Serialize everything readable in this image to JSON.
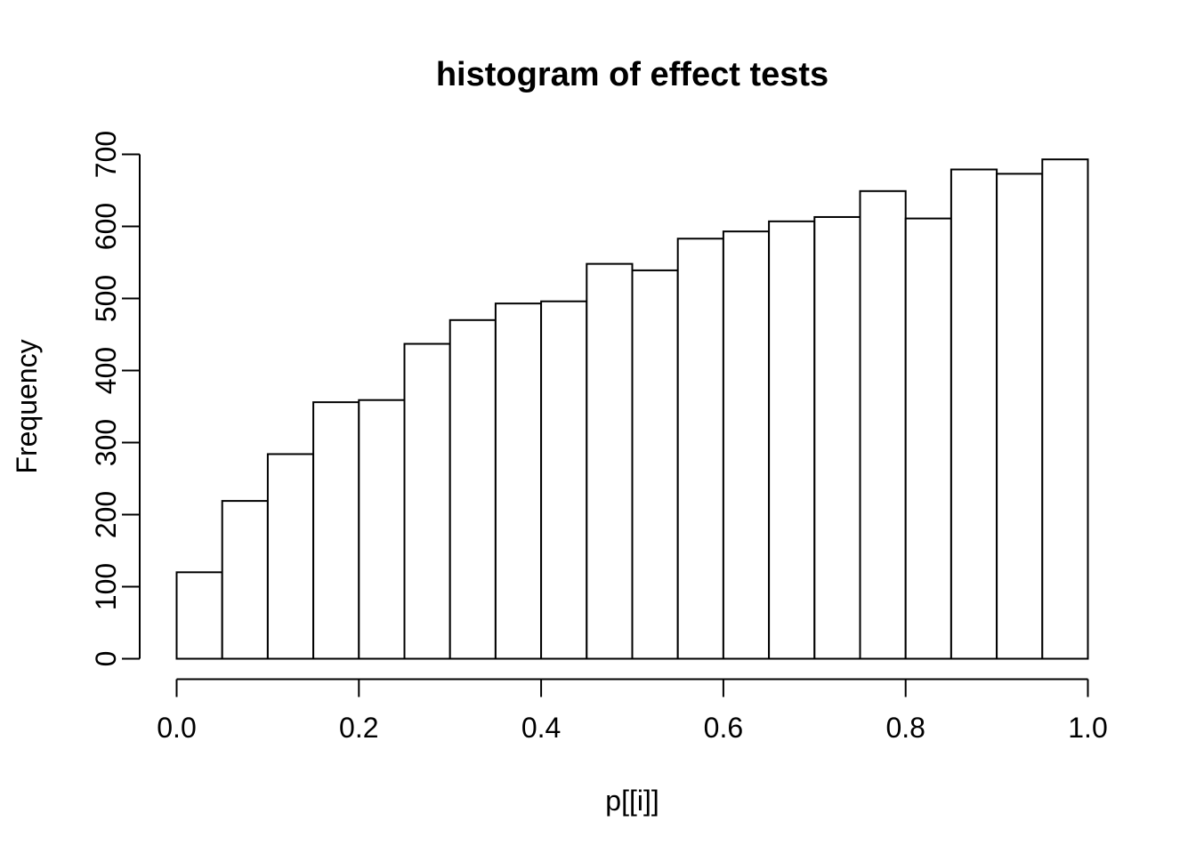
{
  "figure": {
    "background": "#ffffff",
    "foreground": "#000000"
  },
  "chart_data": {
    "type": "bar",
    "subtype": "histogram",
    "title": "histogram of effect tests",
    "xlabel": "p[[i]]",
    "ylabel": "Frequency",
    "xlim": [
      0.0,
      1.0
    ],
    "ylim": [
      0,
      700
    ],
    "bin_width": 0.05,
    "bin_start": 0.0,
    "categories": [
      "0.00-0.05",
      "0.05-0.10",
      "0.10-0.15",
      "0.15-0.20",
      "0.20-0.25",
      "0.25-0.30",
      "0.30-0.35",
      "0.35-0.40",
      "0.40-0.45",
      "0.45-0.50",
      "0.50-0.55",
      "0.55-0.60",
      "0.60-0.65",
      "0.65-0.70",
      "0.70-0.75",
      "0.75-0.80",
      "0.80-0.85",
      "0.85-0.90",
      "0.90-0.95",
      "0.95-1.00"
    ],
    "values": [
      120,
      219,
      284,
      356,
      359,
      437,
      470,
      493,
      496,
      548,
      539,
      583,
      593,
      607,
      613,
      649,
      611,
      679,
      673,
      693
    ],
    "x_ticks": [
      "0.0",
      "0.2",
      "0.4",
      "0.6",
      "0.8",
      "1.0"
    ],
    "y_ticks": [
      "0",
      "100",
      "200",
      "300",
      "400",
      "500",
      "600",
      "700"
    ],
    "grid": "off",
    "legend": "none",
    "bar_fill": "#ffffff",
    "bar_stroke": "#000000",
    "axis_color": "#000000"
  }
}
